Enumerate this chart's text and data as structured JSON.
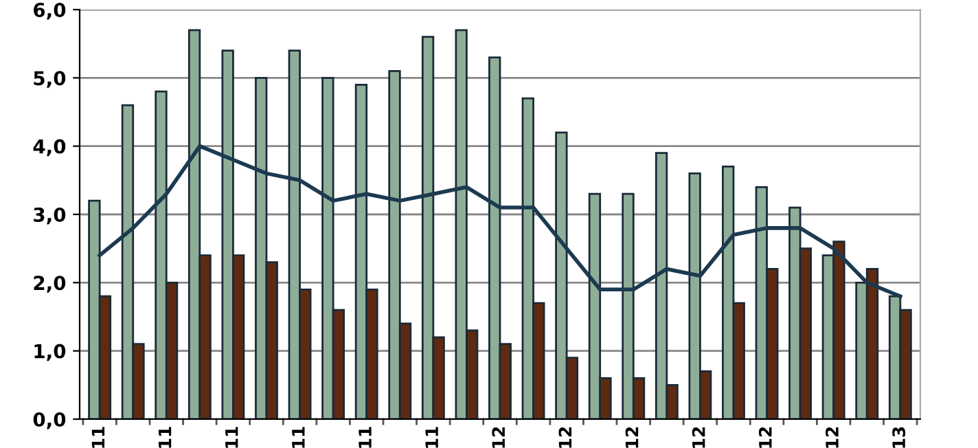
{
  "chart_data": {
    "type": "bar",
    "categories": [
      "11",
      null,
      "11",
      null,
      "11",
      null,
      "11",
      null,
      "11",
      null,
      "11",
      null,
      "12",
      null,
      "12",
      null,
      "12",
      null,
      "12",
      null,
      "12",
      null,
      "12",
      null,
      "13"
    ],
    "series": [
      {
        "color": "#8fae98",
        "values": [
          3.2,
          4.6,
          4.8,
          5.7,
          5.4,
          5.0,
          5.4,
          5.0,
          4.9,
          5.1,
          5.6,
          5.7,
          5.3,
          4.7,
          4.2,
          3.3,
          3.3,
          3.9,
          3.6,
          3.7,
          3.4,
          3.1,
          2.4,
          2.0,
          1.8
        ]
      },
      {
        "color": "#5e2a12",
        "values": [
          1.8,
          1.1,
          2.0,
          2.4,
          2.4,
          2.3,
          1.9,
          1.6,
          1.9,
          1.4,
          1.2,
          1.3,
          1.1,
          1.7,
          0.9,
          0.6,
          0.6,
          0.5,
          0.7,
          1.7,
          2.2,
          2.5,
          2.6,
          2.2,
          1.6
        ]
      },
      {
        "type": "line",
        "color": "#1c3a50",
        "values": [
          2.4,
          2.8,
          3.3,
          4.0,
          3.8,
          3.6,
          3.5,
          3.2,
          3.3,
          3.2,
          3.3,
          3.4,
          3.1,
          3.1,
          2.5,
          1.9,
          1.9,
          2.2,
          2.1,
          2.7,
          2.8,
          2.8,
          2.5,
          2.0,
          1.8
        ]
      }
    ],
    "ylim": [
      0,
      6
    ],
    "yticks": [
      {
        "value": 0,
        "label": "0,0"
      },
      {
        "value": 1,
        "label": "1,0"
      },
      {
        "value": 2,
        "label": "2,0"
      },
      {
        "value": 3,
        "label": "3,0"
      },
      {
        "value": 4,
        "label": "4,0"
      },
      {
        "value": 5,
        "label": "5,0"
      },
      {
        "value": 6,
        "label": "6,0"
      }
    ],
    "grid": "y",
    "marker": "none",
    "line_style": "solid"
  }
}
